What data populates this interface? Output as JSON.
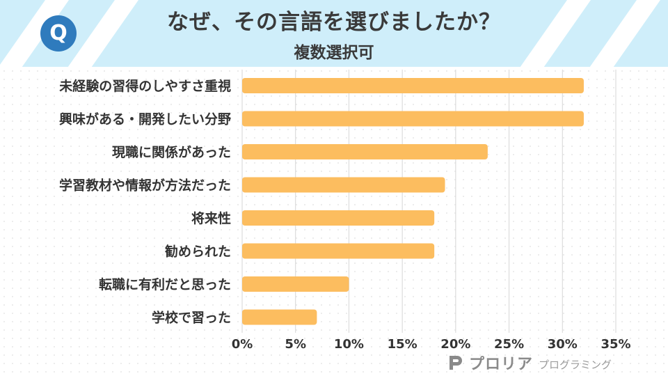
{
  "header": {
    "logo_letter": "Q",
    "title": "なぜ、その言語を選びましたか？",
    "subtitle": "複数選択可"
  },
  "brand": {
    "name": "プロリア",
    "tagline": "プログラミング"
  },
  "colors": {
    "banner": "#cfeefa",
    "bar": "#fcbd5f",
    "logo": "#2f7bbd",
    "text": "#3a3a3a"
  },
  "chart_data": {
    "type": "bar",
    "orientation": "horizontal",
    "title": "なぜ、その言語を選びましたか？",
    "subtitle": "複数選択可",
    "categories": [
      "未経験の習得のしやすさ重視",
      "興味がある・開発したい分野",
      "現職に関係があった",
      "学習教材や情報が方法だった",
      "将来性",
      "勧められた",
      "転職に有利だと思った",
      "学校で習った"
    ],
    "values": [
      32,
      32,
      23,
      19,
      18,
      18,
      10,
      7
    ],
    "unit": "%",
    "xlim": [
      0,
      35
    ],
    "xticks": [
      "0%",
      "5%",
      "10%",
      "15%",
      "20%",
      "25%",
      "30%",
      "35%"
    ],
    "grid": true,
    "legend": "none"
  }
}
